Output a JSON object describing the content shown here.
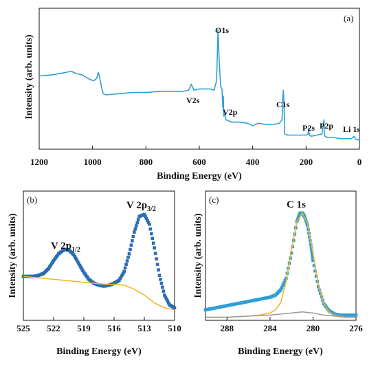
{
  "chart_data": [
    {
      "type": "line",
      "panel_label": "(a)",
      "xlabel": "Binding Energy (eV)",
      "ylabel": "Intensity (arb. units)",
      "xlim": [
        1200,
        0
      ],
      "ylim": [
        0,
        100
      ],
      "x_reversed": true,
      "xticks": [
        1200,
        1000,
        800,
        600,
        400,
        200,
        0
      ],
      "color": "#2f9fd6",
      "series": [
        {
          "x": [
            1200,
            1150,
            1100,
            1080,
            1060,
            1040,
            1025,
            1010,
            995,
            985,
            978,
            972,
            965,
            960,
            950,
            900,
            850,
            800,
            750,
            700,
            660,
            640,
            630,
            620,
            600,
            560,
            545,
            535,
            530,
            525,
            520,
            515,
            512,
            510,
            508,
            505,
            500,
            480,
            450,
            420,
            400,
            380,
            350,
            320,
            300,
            290,
            287,
            285,
            283,
            280,
            270,
            250,
            220,
            200,
            192,
            190,
            188,
            180,
            160,
            140,
            133,
            131,
            129,
            120,
            100,
            70,
            50,
            30,
            20,
            15,
            10,
            0
          ],
          "y": [
            59,
            60,
            62,
            63,
            61,
            60,
            58,
            56,
            55,
            57,
            62,
            56,
            48,
            44,
            43,
            44,
            45,
            45,
            46,
            46,
            46,
            47,
            52,
            47,
            48,
            48,
            47,
            55,
            98,
            70,
            50,
            48,
            32,
            42,
            25,
            27,
            22,
            20,
            20,
            19,
            17,
            19,
            18,
            18,
            19,
            22,
            40,
            47,
            38,
            10,
            9,
            9,
            9,
            9,
            10,
            15,
            9,
            8,
            9,
            10,
            22,
            10,
            8,
            7,
            7,
            6,
            6,
            6,
            8,
            6,
            5,
            5
          ]
        }
      ],
      "annotations": [
        "O1s",
        "V2s",
        "V2p",
        "C1s",
        "P2s",
        "P2p",
        "Li 1s"
      ]
    },
    {
      "type": "scatter",
      "panel_label": "(b)",
      "xlabel": "Binding Energy (eV)",
      "ylabel": "Intensity (arb. units)",
      "xlim": [
        525,
        510
      ],
      "ylim": [
        0,
        100
      ],
      "x_reversed": true,
      "xticks": [
        525,
        522,
        519,
        516,
        513,
        510
      ],
      "annotations": [
        {
          "base": "V 2p",
          "sub": "1/2"
        },
        {
          "base": "V 2p",
          "sub": "3/2"
        }
      ],
      "series": [
        {
          "kind": "data",
          "color": "#2b6cb5",
          "x": [
            525,
            524.5,
            524,
            523.5,
            523,
            522.5,
            522,
            521.5,
            521,
            520.5,
            520,
            519.5,
            519,
            518.5,
            518,
            517.5,
            517,
            516.5,
            516,
            515.5,
            515,
            514.5,
            514,
            513.5,
            513,
            512.5,
            512,
            511.5,
            511,
            510.5,
            510
          ],
          "y": [
            37,
            37,
            37,
            38,
            40,
            45,
            53,
            60,
            64,
            64,
            59,
            50,
            41,
            34,
            30,
            28,
            27,
            28,
            30,
            33,
            42,
            60,
            82,
            98,
            100,
            90,
            66,
            38,
            18,
            8,
            5
          ]
        },
        {
          "kind": "background",
          "color": "#f0b32e",
          "x": [
            525,
            524,
            523,
            522,
            521,
            520,
            519,
            518,
            517,
            516,
            515,
            514,
            513,
            512,
            511,
            510
          ],
          "y": [
            37,
            36,
            35,
            34,
            33,
            32,
            31,
            30,
            29,
            29,
            28,
            24,
            18,
            10,
            5,
            3
          ]
        }
      ]
    },
    {
      "type": "scatter",
      "panel_label": "(c)",
      "xlabel": "Binding Energy (eV)",
      "ylabel": "Intensity (arb. units)",
      "xlim": [
        290,
        276
      ],
      "ylim": [
        0,
        100
      ],
      "x_reversed": true,
      "xticks": [
        288,
        284,
        280,
        276
      ],
      "annotations": [
        "C 1s"
      ],
      "series": [
        {
          "kind": "data",
          "color": "#2f9fd6",
          "x": [
            290,
            289.5,
            289,
            288.5,
            288,
            287.5,
            287,
            286.5,
            286,
            285.5,
            285,
            284.5,
            284,
            283.5,
            283,
            282.5,
            282,
            281.5,
            281.2,
            281,
            280.8,
            280.5,
            280.2,
            280,
            279.5,
            279,
            278.5,
            278,
            277.5,
            277,
            276.5,
            276
          ],
          "y": [
            8,
            9,
            10,
            11,
            12,
            13,
            14,
            15,
            16,
            17,
            18,
            19,
            20,
            22,
            27,
            38,
            62,
            92,
            100,
            100,
            97,
            88,
            70,
            55,
            30,
            14,
            7,
            4,
            3,
            3,
            3,
            3
          ]
        },
        {
          "kind": "fit",
          "color": "#f0b32e",
          "x": [
            290,
            288,
            286,
            285,
            284,
            283.5,
            283,
            282.5,
            282,
            281.5,
            281,
            280.5,
            280,
            279.5,
            279,
            278.5,
            278,
            277,
            276
          ],
          "y": [
            1,
            1,
            2,
            3,
            5,
            8,
            15,
            35,
            65,
            92,
            100,
            90,
            62,
            32,
            14,
            6,
            3,
            1,
            1
          ]
        },
        {
          "kind": "background",
          "color": "#9a9a9a",
          "x": [
            290,
            288,
            286,
            284,
            283,
            282,
            281,
            280,
            279,
            278,
            277,
            276
          ],
          "y": [
            1,
            1,
            2,
            3,
            4,
            5,
            6,
            5,
            3,
            2,
            1,
            1
          ]
        }
      ]
    }
  ]
}
